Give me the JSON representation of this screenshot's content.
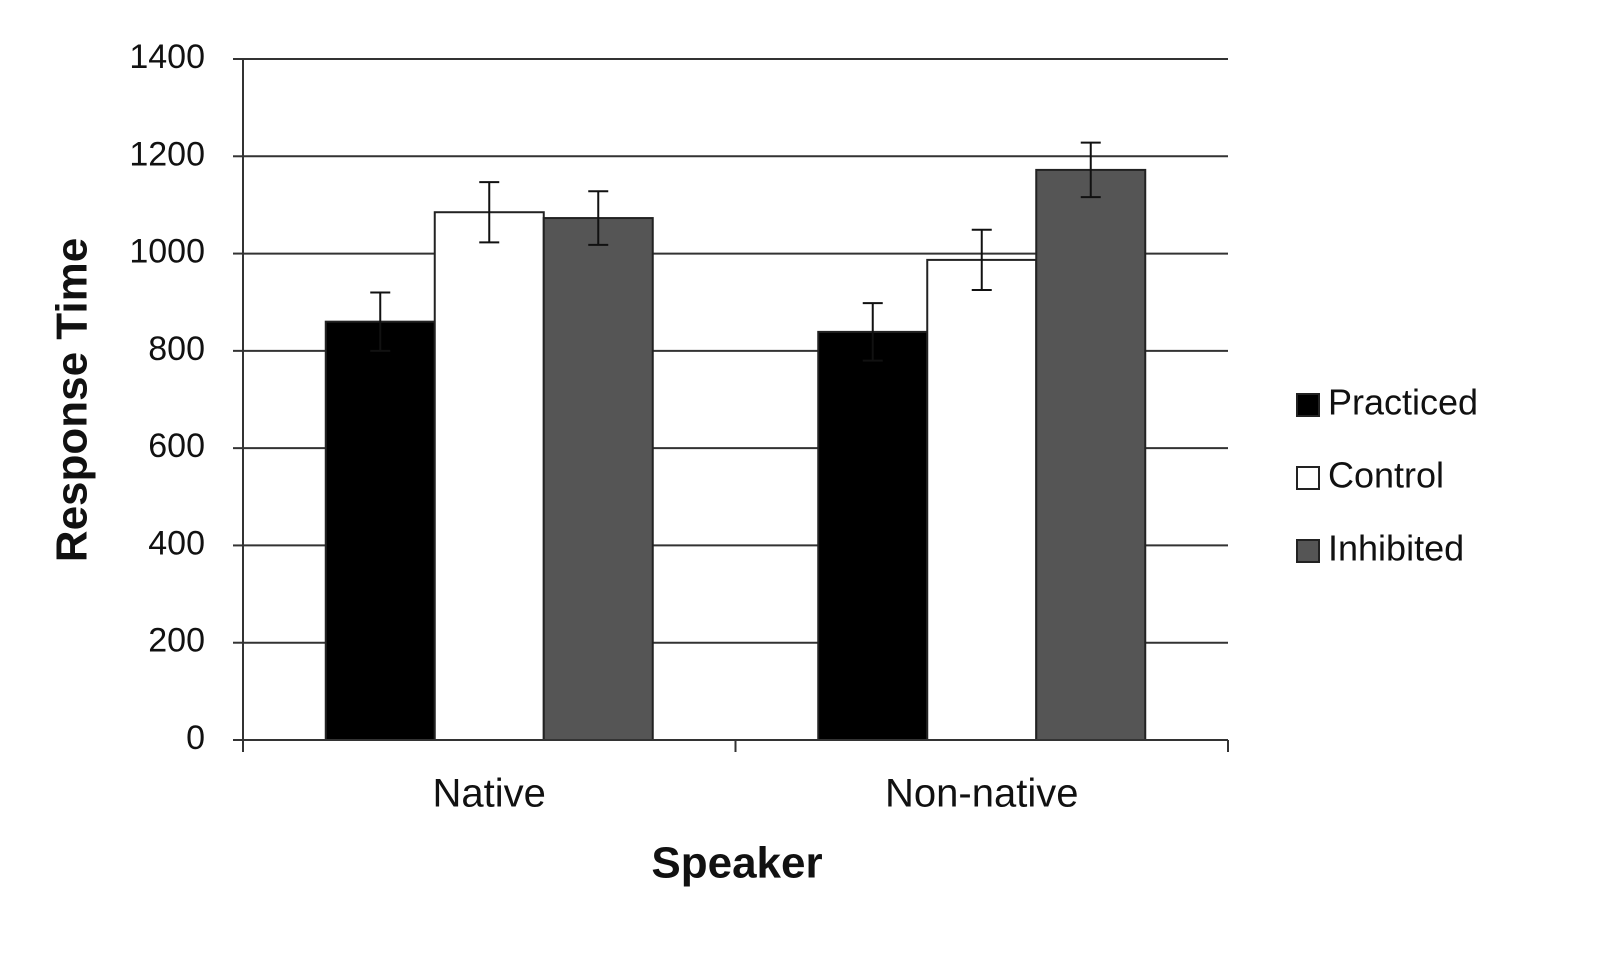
{
  "chart_data": {
    "type": "bar",
    "y_label": "Response Time",
    "x_label": "Speaker",
    "categories": [
      "Native",
      "Non-native"
    ],
    "series": [
      {
        "name": "Practiced",
        "color": "#000000",
        "values": [
          860,
          839
        ],
        "errors": [
          60,
          59
        ]
      },
      {
        "name": "Control",
        "color": "#ffffff",
        "values": [
          1085,
          987
        ],
        "errors": [
          62,
          62
        ]
      },
      {
        "name": "Inhibited",
        "color": "#555555",
        "values": [
          1073,
          1172
        ],
        "errors": [
          55,
          56
        ]
      }
    ],
    "ylim": [
      0,
      1400
    ],
    "yticks": [
      0,
      200,
      400,
      600,
      800,
      1000,
      1200,
      1400
    ],
    "grid": true,
    "legend": "right"
  }
}
